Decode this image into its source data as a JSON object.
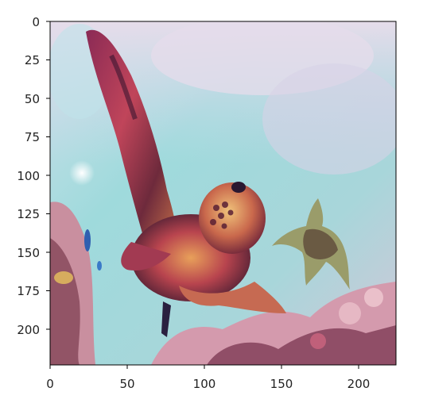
{
  "figure": {
    "image_description_hint": "painterly image of sea turtles swimming over a coral reef",
    "palette": {
      "water_light": "#8fd3d6",
      "water_pale": "#cfe6ea",
      "sky_lavender": "#d9d2e8",
      "turtle_red": "#9b2f4a",
      "turtle_orange": "#e08a4c",
      "turtle_dark": "#3a1a2e",
      "coral_pink": "#e3a3b4",
      "coral_dark": "#6b3246",
      "blue_fish": "#2f5fb0"
    }
  },
  "axes": {
    "x_ticks": [
      "0",
      "50",
      "100",
      "150",
      "200"
    ],
    "y_ticks": [
      "0",
      "25",
      "50",
      "75",
      "100",
      "125",
      "150",
      "175",
      "200"
    ],
    "x_range": [
      0,
      224
    ],
    "y_range": [
      0,
      224
    ]
  }
}
